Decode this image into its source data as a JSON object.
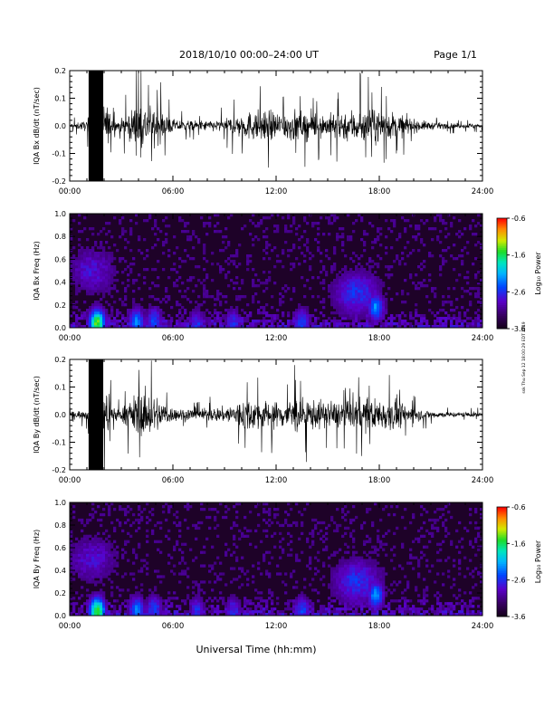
{
  "header": {
    "title": "2018/10/10   00:00–24:00 UT",
    "page": "Page 1/1"
  },
  "footer": {
    "xlabel": "Universal Time (hh:mm)"
  },
  "side_note": "ssk Thu Sep 12 18:00:29 EDT 2019",
  "colorbar": {
    "label": "Log₁₀ Power",
    "ticks": [
      "-0.6",
      "-1.6",
      "-2.6",
      "-3.6"
    ],
    "range": [
      -3.6,
      -0.6
    ]
  },
  "chart_data": [
    {
      "type": "line",
      "ylabel": "IQA Bx dB/dt (nT/sec)",
      "xlim": [
        0,
        24
      ],
      "ylim": [
        -0.2,
        0.2
      ],
      "x_ticks": [
        "00:00",
        "06:00",
        "12:00",
        "18:00",
        "24:00"
      ],
      "y_ticks": [
        "0.2",
        "0.1",
        "0.0",
        "-0.1",
        "-0.2"
      ],
      "series": [
        {
          "x": [
            0,
            1,
            1.5,
            2,
            2.5,
            3,
            4,
            5,
            6,
            7,
            8,
            9,
            10,
            11,
            12,
            13,
            14,
            15,
            16,
            17,
            18,
            19,
            20,
            21,
            22,
            23,
            24
          ],
          "y": [
            0.02,
            0.04,
            0.2,
            0.2,
            0.06,
            0.05,
            0.18,
            0.14,
            0.05,
            0.04,
            0.04,
            0.05,
            0.1,
            0.12,
            0.11,
            0.12,
            0.1,
            0.09,
            0.12,
            0.14,
            0.12,
            0.1,
            0.05,
            0.03,
            0.02,
            0.02,
            0.02
          ]
        }
      ]
    },
    {
      "type": "heatmap",
      "ylabel": "IQA Bx Freq (Hz)",
      "xlim": [
        0,
        24
      ],
      "ylim": [
        0,
        1
      ],
      "x_ticks": [
        "00:00",
        "06:00",
        "12:00",
        "18:00",
        "24:00"
      ],
      "y_ticks": [
        "1.0",
        "0.8",
        "0.6",
        "0.4",
        "0.2",
        "0.0"
      ],
      "features": [
        {
          "x": 1.6,
          "y": 0.04,
          "value": -1.4
        },
        {
          "x": 1.3,
          "y": 0.5,
          "value": -2.8
        },
        {
          "x": 3.9,
          "y": 0.05,
          "value": -2.3
        },
        {
          "x": 4.9,
          "y": 0.06,
          "value": -2.5
        },
        {
          "x": 7.4,
          "y": 0.04,
          "value": -2.6
        },
        {
          "x": 9.5,
          "y": 0.04,
          "value": -2.6
        },
        {
          "x": 13.5,
          "y": 0.05,
          "value": -2.5
        },
        {
          "x": 17.8,
          "y": 0.18,
          "value": -2.2
        },
        {
          "x": 16.7,
          "y": 0.3,
          "value": -2.6
        }
      ],
      "background_value": -3.3
    },
    {
      "type": "line",
      "ylabel": "IQA By dB/dt (nT/sec)",
      "xlim": [
        0,
        24
      ],
      "ylim": [
        -0.2,
        0.2
      ],
      "x_ticks": [
        "00:00",
        "06:00",
        "12:00",
        "18:00",
        "24:00"
      ],
      "y_ticks": [
        "0.2",
        "0.1",
        "0.0",
        "-0.1",
        "-0.2"
      ],
      "series": [
        {
          "x": [
            0,
            1,
            1.5,
            2,
            2.5,
            3,
            4,
            5,
            6,
            7,
            8,
            9,
            10,
            11,
            12,
            13,
            14,
            15,
            16,
            17,
            18,
            19,
            20,
            21,
            22,
            23,
            24
          ],
          "y": [
            0.02,
            0.04,
            0.2,
            0.2,
            0.06,
            0.05,
            0.18,
            0.15,
            0.05,
            0.05,
            0.05,
            0.06,
            0.12,
            0.12,
            0.1,
            0.14,
            0.12,
            0.1,
            0.11,
            0.13,
            0.12,
            0.12,
            0.05,
            0.03,
            0.02,
            0.02,
            0.02
          ]
        }
      ]
    },
    {
      "type": "heatmap",
      "ylabel": "IQA By Freq (Hz)",
      "xlim": [
        0,
        24
      ],
      "ylim": [
        0,
        1
      ],
      "x_ticks": [
        "00:00",
        "06:00",
        "12:00",
        "18:00",
        "24:00"
      ],
      "y_ticks": [
        "1.0",
        "0.8",
        "0.6",
        "0.4",
        "0.2",
        "0.0"
      ],
      "features": [
        {
          "x": 1.6,
          "y": 0.04,
          "value": -1.4
        },
        {
          "x": 1.3,
          "y": 0.5,
          "value": -2.8
        },
        {
          "x": 3.9,
          "y": 0.05,
          "value": -2.3
        },
        {
          "x": 4.9,
          "y": 0.06,
          "value": -2.5
        },
        {
          "x": 7.4,
          "y": 0.04,
          "value": -2.6
        },
        {
          "x": 9.5,
          "y": 0.04,
          "value": -2.6
        },
        {
          "x": 13.5,
          "y": 0.05,
          "value": -2.5
        },
        {
          "x": 17.8,
          "y": 0.18,
          "value": -2.2
        },
        {
          "x": 16.7,
          "y": 0.3,
          "value": -2.6
        }
      ],
      "background_value": -3.3
    }
  ]
}
